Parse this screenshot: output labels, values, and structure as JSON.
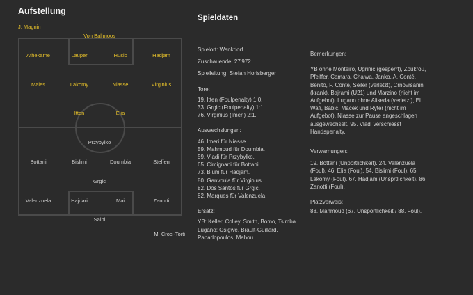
{
  "lineup": {
    "title": "Aufstellung",
    "coach_home": "J. Magnin",
    "coach_away": "M. Croci-Torti",
    "home_players": [
      "Von Ballmoos",
      "Athekame",
      "Lauper",
      "Husic",
      "Hadjam",
      "Males",
      "Lakomy",
      "Niasse",
      "Virginius",
      "Itten",
      "Elia"
    ],
    "away_players": [
      "Przybylko",
      "Bottani",
      "Bislimi",
      "Doumbia",
      "Steffen",
      "Grgic",
      "Valenzuela",
      "Hajdari",
      "Mai",
      "Zanotti",
      "Saipi"
    ]
  },
  "spieldaten": {
    "heading": "Spieldaten",
    "spielort": "Spielort: Wankdorf",
    "zuschauer": "Zuschauende: 27'972",
    "spielleitung": "Spielleitung: Stefan Horisberger",
    "tore_label": "Tore:",
    "tore": [
      "19. Itten (Foulpenalty) 1:0.",
      "33. Grgic (Foulpenalty) 1:1.",
      "76. Virginius (Imeri) 2:1."
    ],
    "wechsel_label": "Auswechslungen:",
    "wechsel": [
      "46. Imeri für Niasse.",
      "59. Mahmoud für Doumbia.",
      "59. Vladi für Przybylko.",
      "65. Cimignani für Bottani.",
      "73. Blum für Hadjam.",
      "80. Ganvoula für Virginius.",
      "82. Dos Santos für Grgic.",
      "82. Marques für Valenzuela."
    ],
    "ersatz_label": "Ersatz:",
    "ersatz": [
      "YB: Keller, Colley, Smith, Bomo, Tsimba.",
      "Lugano: Osigwe, Brault-Guillard, Papadopoulos, Mahou."
    ]
  },
  "bemerkungen": {
    "label": "Bemerkungen:",
    "text": "YB ohne Monteiro, Ugrinic (gesperrt), Zoukrou, Pfeiffer, Camara, Chaiwa, Janko, A. Conté, Benito, F. Conte, Seiler (verletzt), Crnovrsanin (krank), Bajrami (U21) und Marzino (nicht im Aufgebot). Lugano ohne Aliseda (verletzt), El Wafi, Babic, Macek und Ryter (nicht im Aufgebot). Niasse zur Pause angeschlagen ausgewechselt. 95. Vladi verschiesst Handspenalty.",
    "verwarnungen_label": "Verwarnungen:",
    "verwarnungen": "19. Bottani (Unportlichkeit). 24. Valenzuela (Foul). 46. Elia (Foul). 54. Bislimi (Foul). 65. Lakomy (Foul). 67. Hadjam (Unsprtlichkeit). 86. Zanotti (Foul).",
    "platzverweis_label": "Platzverweis:",
    "platzverweis": "88. Mahmoud (67. Unsportlichkeit / 88. Foul)."
  }
}
